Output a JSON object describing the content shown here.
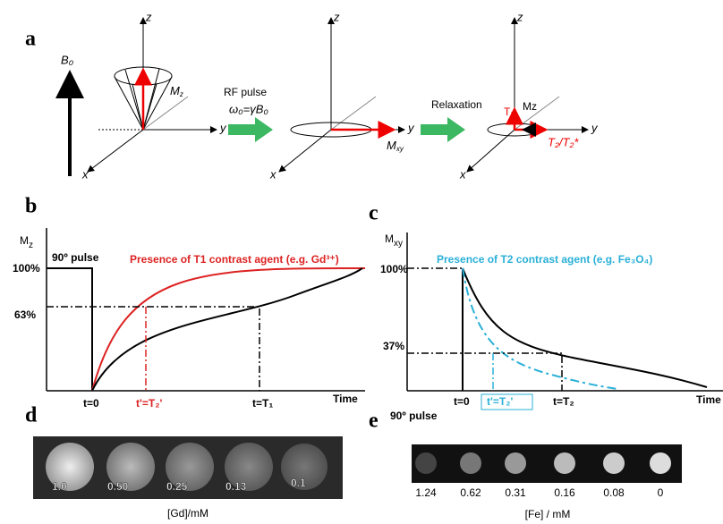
{
  "panel_a": {
    "label": "a",
    "b0": "B₀",
    "frames": [
      {
        "z": "z",
        "y": "y",
        "x": "x"
      },
      {
        "z": "z",
        "y": "y",
        "x": "x"
      },
      {
        "z": "z",
        "y": "y",
        "x": "x"
      }
    ],
    "mz": {
      "base": "M",
      "sub": "z"
    },
    "rf_pulse": "RF pulse",
    "larmor": "ω₀=γB₀",
    "mxy": {
      "base": "M",
      "sub": "xy"
    },
    "relaxation": "Relaxation",
    "t1": "T₁",
    "mz_plain": "Mz",
    "t2": "T₂/T₂*"
  },
  "panel_b": {
    "label": "b",
    "y_label": {
      "base": "M",
      "sub": "z"
    },
    "pulse": "90º pulse",
    "curve_label": "Presence of T1 contrast agent (e.g. Gd³⁺)",
    "level_100": "100%",
    "level_63": "63%",
    "t0": "t=0",
    "t2p": "t'=T₂'",
    "t1": "t=T₁",
    "time": "Time"
  },
  "panel_c": {
    "label": "c",
    "y_label": {
      "base": "M",
      "sub": "xy"
    },
    "curve_label": "Presence of T2 contrast agent (e.g. Fe₃O₄)",
    "level_100": "100%",
    "level_37": "37%",
    "t0": "t=0",
    "t2p": "t'=T₂'",
    "t2": "t=T₂",
    "time": "Time",
    "pulse": "90º pulse"
  },
  "panel_d": {
    "label": "d",
    "concentrations": [
      "1.0",
      "0.50",
      "0.25",
      "0.13",
      "0.1"
    ],
    "axis_label": "[Gd]/mM"
  },
  "panel_e": {
    "label": "e",
    "concentrations": [
      "1.24",
      "0.62",
      "0.31",
      "0.16",
      "0.08",
      "0"
    ],
    "axis_label": "[Fe] / mM"
  }
}
